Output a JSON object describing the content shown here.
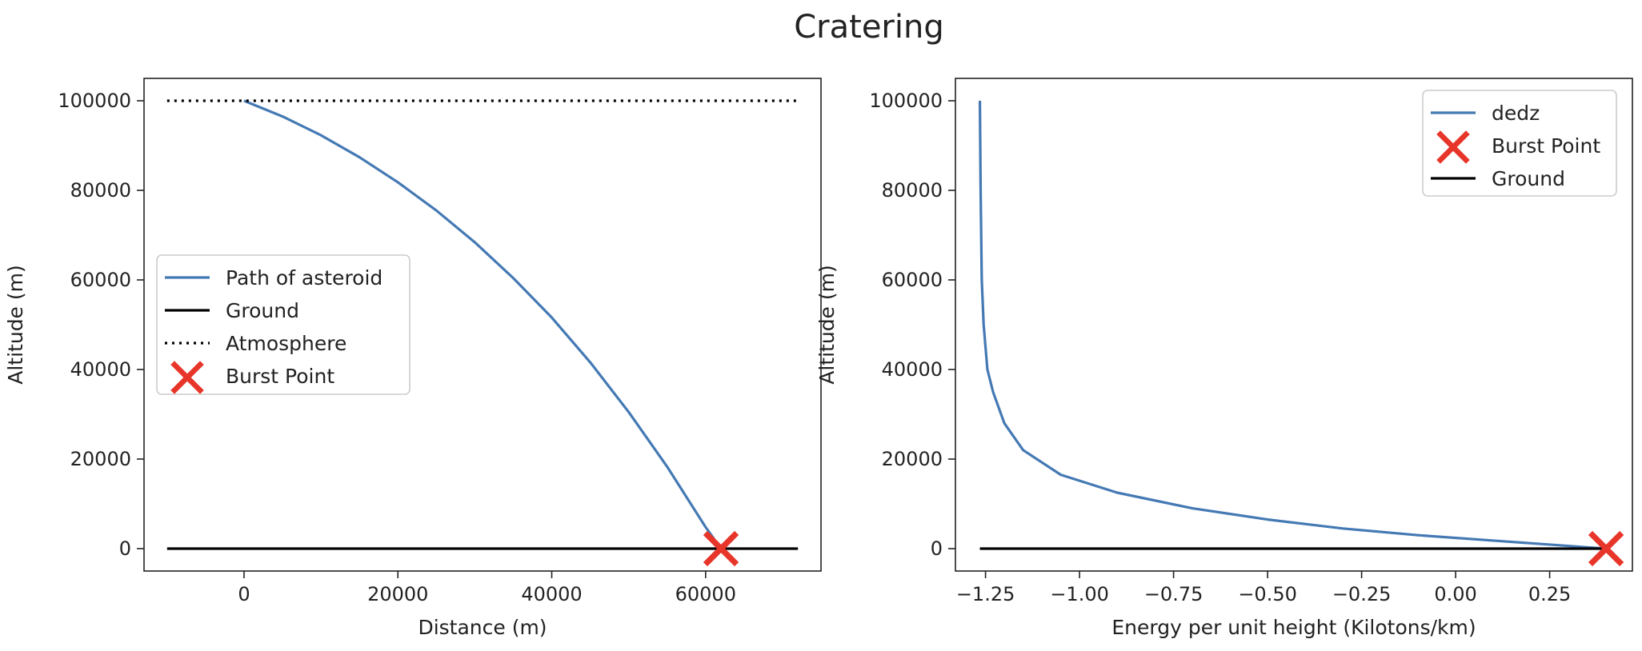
{
  "figure": {
    "title": "Cratering"
  },
  "colors": {
    "path": "#4479b4",
    "ground": "#000000",
    "atmosphere": "#000000",
    "burst": "#e8352a",
    "axes": "#222222"
  },
  "chart_data": [
    {
      "type": "line",
      "xlabel": "Distance (m)",
      "ylabel": "Altitude (m)",
      "xlim": [
        -13000,
        75000
      ],
      "ylim": [
        -5000,
        105000
      ],
      "xticks": [
        "0",
        "20000",
        "40000",
        "60000"
      ],
      "xtick_values": [
        0,
        20000,
        40000,
        60000
      ],
      "yticks": [
        "0",
        "20000",
        "40000",
        "60000",
        "80000",
        "100000"
      ],
      "ytick_values": [
        0,
        20000,
        40000,
        60000,
        80000,
        100000
      ],
      "legend_position": "center-left",
      "series": [
        {
          "name": "Path of asteroid",
          "style": "line",
          "x": [
            0,
            5000,
            10000,
            15000,
            20000,
            25000,
            30000,
            35000,
            40000,
            45000,
            50000,
            55000,
            60000,
            62000
          ],
          "y": [
            100000,
            96500,
            92300,
            87400,
            81800,
            75500,
            68400,
            60400,
            51600,
            41600,
            30500,
            18300,
            4800,
            0
          ]
        },
        {
          "name": "Ground",
          "style": "line",
          "x": [
            -10000,
            72000
          ],
          "y": [
            0,
            0
          ]
        },
        {
          "name": "Atmosphere",
          "style": "dotted",
          "x": [
            -10000,
            72000
          ],
          "y": [
            100000,
            100000
          ]
        },
        {
          "name": "Burst Point",
          "style": "marker-x",
          "x": [
            62000
          ],
          "y": [
            0
          ]
        }
      ]
    },
    {
      "type": "line",
      "xlabel": "Energy per unit height (Kilotons/km)",
      "ylabel": "Altitude (m)",
      "xlim": [
        -1.33,
        0.47
      ],
      "ylim": [
        -5000,
        105000
      ],
      "xticks": [
        "−1.25",
        "−1.00",
        "−0.75",
        "−0.50",
        "−0.25",
        "0.00",
        "0.25"
      ],
      "xtick_values": [
        -1.25,
        -1.0,
        -0.75,
        -0.5,
        -0.25,
        0.0,
        0.25
      ],
      "yticks": [
        "0",
        "20000",
        "40000",
        "60000",
        "80000",
        "100000"
      ],
      "ytick_values": [
        0,
        20000,
        40000,
        60000,
        80000,
        100000
      ],
      "legend_position": "top-right",
      "series": [
        {
          "name": "dedz",
          "style": "line",
          "x": [
            -1.265,
            -1.263,
            -1.26,
            -1.255,
            -1.245,
            -1.23,
            -1.2,
            -1.15,
            -1.05,
            -0.9,
            -0.7,
            -0.5,
            -0.3,
            -0.1,
            0.1,
            0.25,
            0.35,
            0.4
          ],
          "y": [
            100000,
            80000,
            60000,
            50000,
            40000,
            35000,
            28000,
            22000,
            16500,
            12500,
            9000,
            6500,
            4500,
            3000,
            1800,
            900,
            300,
            0
          ]
        },
        {
          "name": "Burst Point",
          "style": "marker-x",
          "x": [
            0.4
          ],
          "y": [
            0
          ]
        },
        {
          "name": "Ground",
          "style": "line",
          "x": [
            -1.265,
            0.4
          ],
          "y": [
            0,
            0
          ]
        }
      ]
    }
  ]
}
